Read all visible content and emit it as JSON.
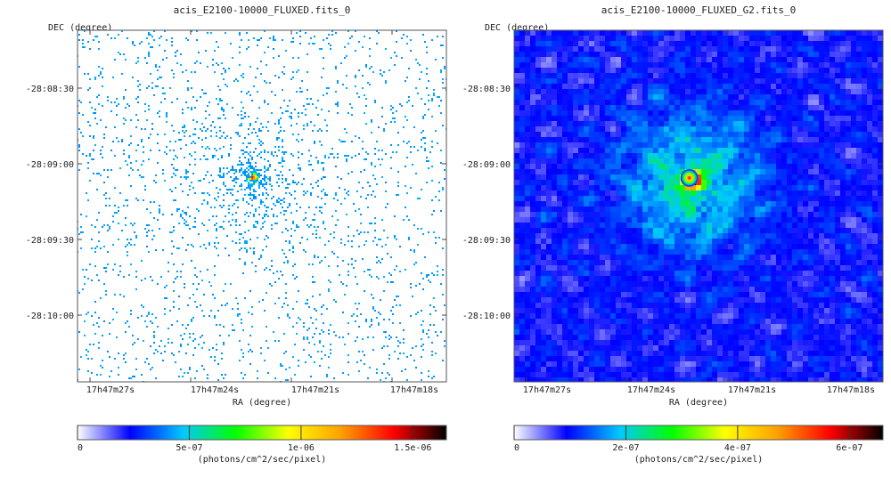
{
  "chart_data": [
    {
      "type": "heatmap",
      "title": "acis_E2100-10000_FLUXED.fits_0",
      "xlabel": "RA (degree)",
      "ylabel": "DEC (degree)",
      "x_ticks": [
        "17h47m27s",
        "17h47m24s",
        "17h47m21s",
        "17h47m18s"
      ],
      "y_ticks": [
        "-28:08:30",
        "-28:09:00",
        "-28:09:30",
        "-28:10:00"
      ],
      "colorbar": {
        "label": "(photons/cm^2/sec/pixel)",
        "ticks": [
          "0",
          "5e-07",
          "1e-06",
          "1.5e-06"
        ],
        "tick_values": [
          0,
          5e-07,
          1e-06,
          1.5e-06
        ],
        "range": [
          0,
          1.65e-06
        ],
        "colors": [
          "#ffffff",
          "#0000ff",
          "#00c8ff",
          "#00ff00",
          "#ffff00",
          "#ffa000",
          "#ff0000",
          "#000000"
        ]
      },
      "style": "sparse",
      "source_peak": 1.5e-06
    },
    {
      "type": "heatmap",
      "title": "acis_E2100-10000_FLUXED_G2.fits_0",
      "xlabel": "RA (degree)",
      "ylabel": "DEC (degree)",
      "x_ticks": [
        "17h47m27s",
        "17h47m24s",
        "17h47m21s",
        "17h47m18s"
      ],
      "y_ticks": [
        "-28:08:30",
        "-28:09:00",
        "-28:09:30",
        "-28:10:00"
      ],
      "colorbar": {
        "label": "(photons/cm^2/sec/pixel)",
        "ticks": [
          "0",
          "2e-07",
          "4e-07",
          "6e-07"
        ],
        "tick_values": [
          0,
          2e-07,
          4e-07,
          6e-07
        ],
        "range": [
          0,
          6.6e-07
        ],
        "colors": [
          "#ffffff",
          "#0000ff",
          "#00c8ff",
          "#00ff00",
          "#ffff00",
          "#ffa000",
          "#ff0000",
          "#000000"
        ]
      },
      "style": "smoothed",
      "source_peak": 6e-07
    }
  ]
}
